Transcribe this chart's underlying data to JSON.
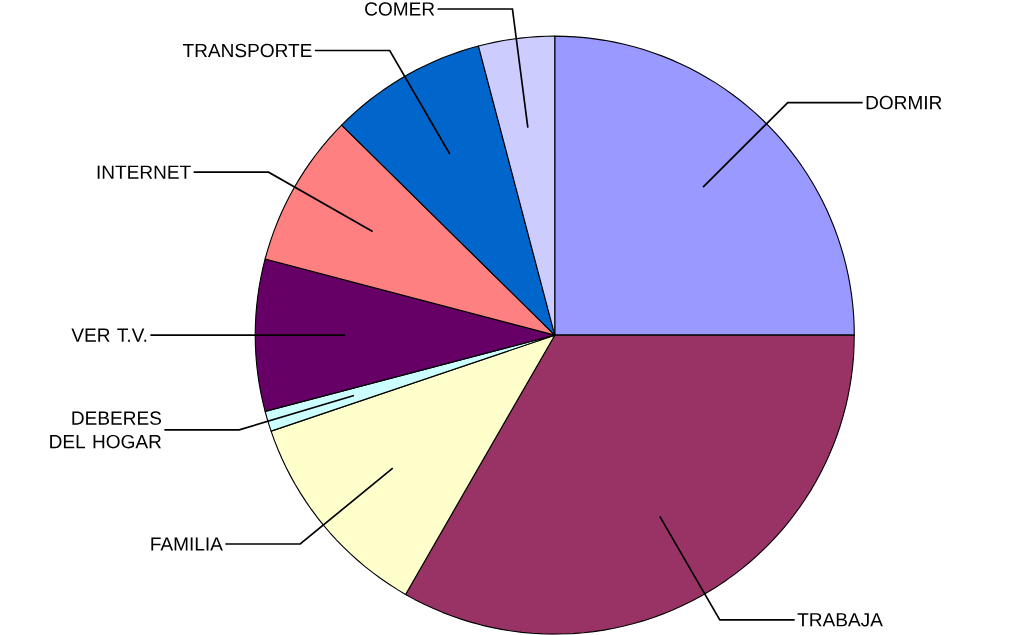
{
  "chart_data": {
    "type": "pie",
    "categories": [
      "DORMIR",
      "TRABAJA",
      "FAMILIA",
      "DEBERES DEL HOGAR",
      "VER T.V.",
      "INTERNET",
      "TRANSPORTE",
      "COMER"
    ],
    "values": [
      25,
      33.3,
      11.5,
      1.1,
      8.2,
      8.3,
      8.5,
      4.1
    ],
    "colors": [
      "#9999ff",
      "#993366",
      "#ffffcc",
      "#ccffff",
      "#660066",
      "#ff8080",
      "#0066cc",
      "#ccccff"
    ]
  }
}
